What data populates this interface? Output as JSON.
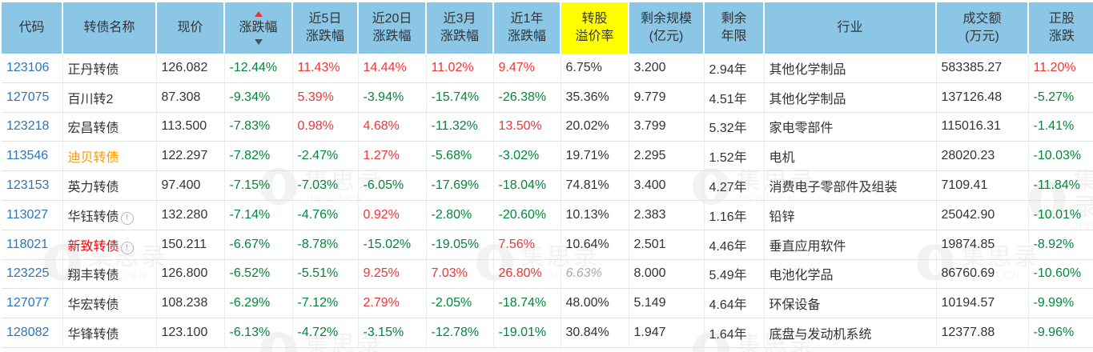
{
  "colors": {
    "header_bg": "#8cc6e6",
    "highlight_yellow": "#ffff00",
    "up_red": "#f13535",
    "down_green": "#00873a",
    "code_blue": "#2e75b6",
    "name_orange": "#ff9900",
    "name_red": "#fd0000",
    "muted_gray": "#aaaaaa",
    "sort_up_red": "#e03a3a",
    "sort_down_gray": "#4a5058"
  },
  "watermark": {
    "text": "集思录",
    "subtext": "JISILU.CN"
  },
  "table": {
    "columns": [
      {
        "key": "code",
        "label": "代码"
      },
      {
        "key": "name",
        "label": "转债名称"
      },
      {
        "key": "price",
        "label": "现价"
      },
      {
        "key": "chg",
        "label": "涨跌幅",
        "sort_icons": true
      },
      {
        "key": "chg5",
        "label": "近5日\n涨跌幅"
      },
      {
        "key": "chg20",
        "label": "近20日\n涨跌幅"
      },
      {
        "key": "chg3m",
        "label": "近3月\n涨跌幅"
      },
      {
        "key": "chg1y",
        "label": "近1年\n涨跌幅"
      },
      {
        "key": "premium",
        "label": "转股\n溢价率",
        "highlight": true
      },
      {
        "key": "scale",
        "label": "剩余规模\n(亿元)"
      },
      {
        "key": "years",
        "label": "剩余\n年限"
      },
      {
        "key": "industry",
        "label": "行业"
      },
      {
        "key": "turnover",
        "label": "成交额\n(万元)"
      },
      {
        "key": "stock",
        "label": "正股\n涨跌"
      }
    ],
    "signed_columns": [
      "chg",
      "chg5",
      "chg20",
      "chg3m",
      "chg1y",
      "stock"
    ],
    "rows": [
      {
        "code": "123106",
        "name": "正丹转债",
        "name_color": null,
        "info_icon": false,
        "price": "126.082",
        "chg": "-12.44%",
        "chg5": "11.43%",
        "chg20": "14.44%",
        "chg3m": "11.02%",
        "chg1y": "9.47%",
        "premium": "6.75%",
        "premium_muted": false,
        "scale": "3.200",
        "years": "2.94年",
        "industry": "其他化学制品",
        "turnover": "583385.27",
        "stock": "11.20%"
      },
      {
        "code": "127075",
        "name": "百川转2",
        "name_color": null,
        "info_icon": false,
        "price": "87.308",
        "chg": "-9.34%",
        "chg5": "5.39%",
        "chg20": "-3.94%",
        "chg3m": "-15.74%",
        "chg1y": "-26.38%",
        "premium": "35.36%",
        "premium_muted": false,
        "scale": "9.779",
        "years": "4.51年",
        "industry": "其他化学制品",
        "turnover": "137126.48",
        "stock": "-5.27%"
      },
      {
        "code": "123218",
        "name": "宏昌转债",
        "name_color": null,
        "info_icon": false,
        "price": "113.500",
        "chg": "-7.83%",
        "chg5": "0.98%",
        "chg20": "4.68%",
        "chg3m": "-11.32%",
        "chg1y": "13.50%",
        "premium": "20.02%",
        "premium_muted": false,
        "scale": "3.799",
        "years": "5.32年",
        "industry": "家电零部件",
        "turnover": "115016.31",
        "stock": "-1.41%"
      },
      {
        "code": "113546",
        "name": "迪贝转债",
        "name_color": "orange",
        "info_icon": false,
        "price": "122.297",
        "chg": "-7.82%",
        "chg5": "-2.47%",
        "chg20": "1.27%",
        "chg3m": "-5.68%",
        "chg1y": "-3.02%",
        "premium": "19.71%",
        "premium_muted": false,
        "scale": "2.295",
        "years": "1.52年",
        "industry": "电机",
        "turnover": "28020.23",
        "stock": "-10.03%"
      },
      {
        "code": "123153",
        "name": "英力转债",
        "name_color": null,
        "info_icon": false,
        "price": "97.400",
        "chg": "-7.15%",
        "chg5": "-7.03%",
        "chg20": "-6.05%",
        "chg3m": "-17.69%",
        "chg1y": "-18.04%",
        "premium": "74.81%",
        "premium_muted": false,
        "scale": "3.400",
        "years": "4.27年",
        "industry": "消费电子零部件及组装",
        "turnover": "7109.41",
        "stock": "-11.84%"
      },
      {
        "code": "113027",
        "name": "华钰转债",
        "name_color": null,
        "info_icon": true,
        "price": "132.280",
        "chg": "-7.14%",
        "chg5": "-4.76%",
        "chg20": "0.92%",
        "chg3m": "-2.80%",
        "chg1y": "-20.60%",
        "premium": "10.13%",
        "premium_muted": false,
        "scale": "2.383",
        "years": "1.16年",
        "industry": "铅锌",
        "turnover": "25042.90",
        "stock": "-10.01%"
      },
      {
        "code": "118021",
        "name": "新致转债",
        "name_color": "red",
        "info_icon": true,
        "price": "150.211",
        "chg": "-6.67%",
        "chg5": "-8.78%",
        "chg20": "-15.02%",
        "chg3m": "-19.05%",
        "chg1y": "7.56%",
        "premium": "10.64%",
        "premium_muted": false,
        "scale": "2.501",
        "years": "4.46年",
        "industry": "垂直应用软件",
        "turnover": "19874.85",
        "stock": "-8.92%"
      },
      {
        "code": "123225",
        "name": "翔丰转债",
        "name_color": null,
        "info_icon": false,
        "price": "126.800",
        "chg": "-6.52%",
        "chg5": "-5.51%",
        "chg20": "9.25%",
        "chg3m": "7.03%",
        "chg1y": "26.80%",
        "premium": "6.63%",
        "premium_muted": true,
        "scale": "8.000",
        "years": "5.49年",
        "industry": "电池化学品",
        "turnover": "86760.69",
        "stock": "-10.60%"
      },
      {
        "code": "127077",
        "name": "华宏转债",
        "name_color": null,
        "info_icon": false,
        "price": "108.238",
        "chg": "-6.29%",
        "chg5": "-7.12%",
        "chg20": "2.79%",
        "chg3m": "-2.05%",
        "chg1y": "-18.74%",
        "premium": "48.00%",
        "premium_muted": false,
        "scale": "5.149",
        "years": "4.64年",
        "industry": "环保设备",
        "turnover": "10194.57",
        "stock": "-9.99%"
      },
      {
        "code": "128082",
        "name": "华锋转债",
        "name_color": null,
        "info_icon": false,
        "price": "123.100",
        "chg": "-6.13%",
        "chg5": "-4.72%",
        "chg20": "-3.15%",
        "chg3m": "-12.78%",
        "chg1y": "-19.01%",
        "premium": "30.84%",
        "premium_muted": false,
        "scale": "1.947",
        "years": "1.64年",
        "industry": "底盘与发动机系统",
        "turnover": "12377.88",
        "stock": "-9.96%"
      }
    ],
    "info_icon_glyph": "!"
  }
}
